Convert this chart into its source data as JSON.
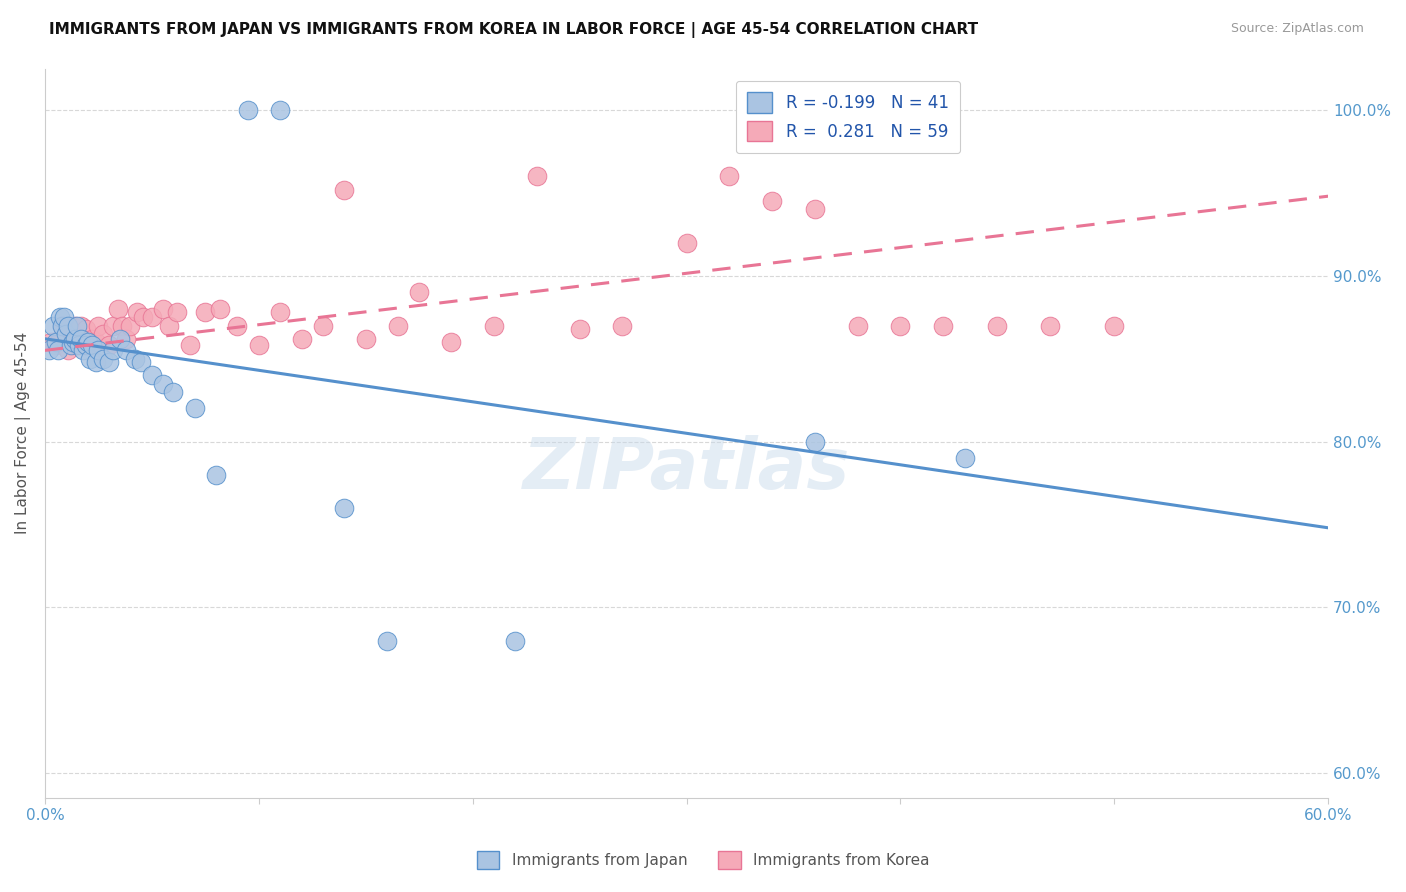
{
  "title": "IMMIGRANTS FROM JAPAN VS IMMIGRANTS FROM KOREA IN LABOR FORCE | AGE 45-54 CORRELATION CHART",
  "source": "Source: ZipAtlas.com",
  "ylabel": "In Labor Force | Age 45-54",
  "ylabel_right_ticks": [
    "60.0%",
    "70.0%",
    "80.0%",
    "90.0%",
    "100.0%"
  ],
  "ylabel_right_vals": [
    0.6,
    0.7,
    0.8,
    0.9,
    1.0
  ],
  "xlim": [
    0.0,
    0.6
  ],
  "ylim": [
    0.585,
    1.025
  ],
  "legend_japan_r": "-0.199",
  "legend_japan_n": "41",
  "legend_korea_r": "0.281",
  "legend_korea_n": "59",
  "japan_color": "#aac4e2",
  "korea_color": "#f5aab8",
  "japan_line_color": "#5590cc",
  "korea_line_color": "#e87595",
  "watermark": "ZIPatlas",
  "japan_scatter_x": [
    0.002,
    0.004,
    0.005,
    0.006,
    0.007,
    0.008,
    0.009,
    0.01,
    0.011,
    0.012,
    0.013,
    0.014,
    0.015,
    0.016,
    0.017,
    0.018,
    0.019,
    0.02,
    0.021,
    0.022,
    0.024,
    0.025,
    0.027,
    0.03,
    0.032,
    0.035,
    0.038,
    0.042,
    0.045,
    0.05,
    0.055,
    0.06,
    0.07,
    0.08,
    0.095,
    0.11,
    0.14,
    0.16,
    0.22,
    0.36,
    0.43
  ],
  "japan_scatter_y": [
    0.855,
    0.87,
    0.86,
    0.855,
    0.875,
    0.87,
    0.875,
    0.865,
    0.87,
    0.858,
    0.86,
    0.862,
    0.87,
    0.858,
    0.862,
    0.855,
    0.858,
    0.86,
    0.85,
    0.858,
    0.848,
    0.855,
    0.85,
    0.848,
    0.855,
    0.862,
    0.855,
    0.85,
    0.848,
    0.84,
    0.835,
    0.83,
    0.82,
    0.78,
    1.0,
    1.0,
    0.76,
    0.68,
    0.68,
    0.8,
    0.79
  ],
  "korea_scatter_x": [
    0.003,
    0.005,
    0.007,
    0.008,
    0.01,
    0.011,
    0.012,
    0.013,
    0.014,
    0.015,
    0.016,
    0.017,
    0.018,
    0.019,
    0.02,
    0.021,
    0.022,
    0.024,
    0.025,
    0.027,
    0.03,
    0.032,
    0.034,
    0.036,
    0.038,
    0.04,
    0.043,
    0.046,
    0.05,
    0.055,
    0.058,
    0.062,
    0.068,
    0.075,
    0.082,
    0.09,
    0.1,
    0.11,
    0.12,
    0.13,
    0.14,
    0.15,
    0.165,
    0.175,
    0.19,
    0.21,
    0.23,
    0.25,
    0.27,
    0.3,
    0.32,
    0.34,
    0.36,
    0.38,
    0.4,
    0.42,
    0.445,
    0.47,
    0.5
  ],
  "korea_scatter_y": [
    0.86,
    0.858,
    0.862,
    0.87,
    0.86,
    0.855,
    0.868,
    0.862,
    0.87,
    0.858,
    0.862,
    0.87,
    0.86,
    0.868,
    0.858,
    0.86,
    0.862,
    0.86,
    0.87,
    0.865,
    0.858,
    0.87,
    0.88,
    0.87,
    0.862,
    0.87,
    0.878,
    0.875,
    0.875,
    0.88,
    0.87,
    0.878,
    0.858,
    0.878,
    0.88,
    0.87,
    0.858,
    0.878,
    0.862,
    0.87,
    0.952,
    0.862,
    0.87,
    0.89,
    0.86,
    0.87,
    0.96,
    0.868,
    0.87,
    0.92,
    0.96,
    0.945,
    0.94,
    0.87,
    0.87,
    0.87,
    0.87,
    0.87,
    0.87
  ],
  "japan_line_x": [
    0.0,
    0.6
  ],
  "japan_line_y": [
    0.862,
    0.748
  ],
  "korea_line_x": [
    0.0,
    0.6
  ],
  "korea_line_y": [
    0.855,
    0.948
  ]
}
